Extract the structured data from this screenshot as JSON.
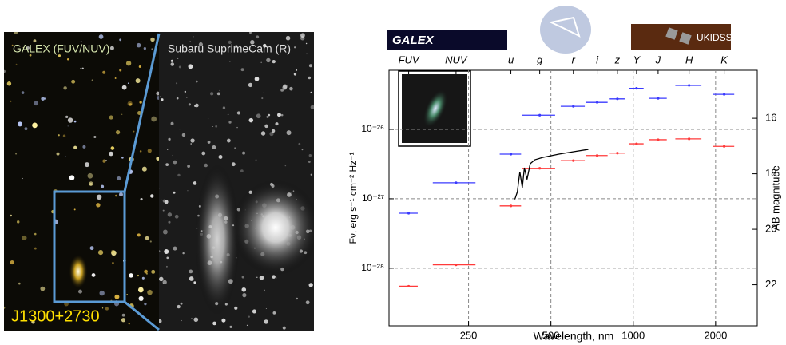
{
  "panels": {
    "galex_label": "GALEX (FUV/NUV)",
    "subaru_label": "Subaru SuprimeCam (R)",
    "object_label": "J1300+2730"
  },
  "logos": {
    "galex": "GALEX",
    "ukidss": "UKIDSS"
  },
  "chart_data": {
    "type": "errorbar",
    "xlabel": "Wavelength, nm",
    "ylabel": "Fν, erg s⁻¹ cm⁻² Hz⁻¹",
    "y2label": "AB magnitude",
    "log_x": true,
    "log_y": true,
    "grid": true,
    "band_labels": [
      "FUV",
      "NUV",
      "u",
      "g",
      "r",
      "i",
      "z",
      "Y",
      "J",
      "H",
      "K"
    ],
    "x": [
      151,
      225,
      357,
      455,
      604,
      738,
      875,
      1028,
      1233,
      1600,
      2150
    ],
    "xerr": [
      12,
      40,
      32,
      63,
      61,
      68,
      55,
      63,
      93,
      175,
      190
    ],
    "series": [
      {
        "color": "#3a3aff",
        "values": [
          6.2e-28,
          1.7e-27,
          4.4e-27,
          1.6e-26,
          2.15e-26,
          2.45e-26,
          2.75e-26,
          3.9e-26,
          2.8e-26,
          4.3e-26,
          3.2e-26
        ]
      },
      {
        "color": "#ff3a3a",
        "values": [
          5.5e-29,
          1.12e-28,
          7.9e-28,
          2.75e-27,
          3.55e-27,
          4.2e-27,
          4.55e-27,
          6.2e-27,
          7.1e-27,
          7.3e-27,
          5.7e-27
        ]
      },
      {
        "type": "line",
        "color": "#000000",
        "x": [
          369,
          377,
          385,
          393,
          400,
          409,
          420,
          437,
          467,
          535,
          611,
          685
        ],
        "values": [
          9.8e-28,
          1.26e-27,
          2.45e-27,
          1.45e-27,
          2.8e-27,
          1.9e-27,
          3.2e-27,
          3.65e-27,
          3.95e-27,
          4.4e-27,
          4.8e-27,
          5.15e-27
        ]
      }
    ],
    "xlim": [
      128,
      2840
    ],
    "xticks": [
      250,
      500,
      1000,
      2000
    ],
    "ylim": [
      1.48e-29,
      7.1e-26
    ],
    "yticks": [
      {
        "value": 1e-28,
        "label": "10⁻²⁸"
      },
      {
        "value": 1e-27,
        "label": "10⁻²⁷"
      },
      {
        "value": 1e-26,
        "label": "10⁻²⁶"
      }
    ],
    "y2lim": [
      14.27,
      23.48
    ],
    "y2ticks": [
      16,
      18,
      20,
      22
    ]
  }
}
